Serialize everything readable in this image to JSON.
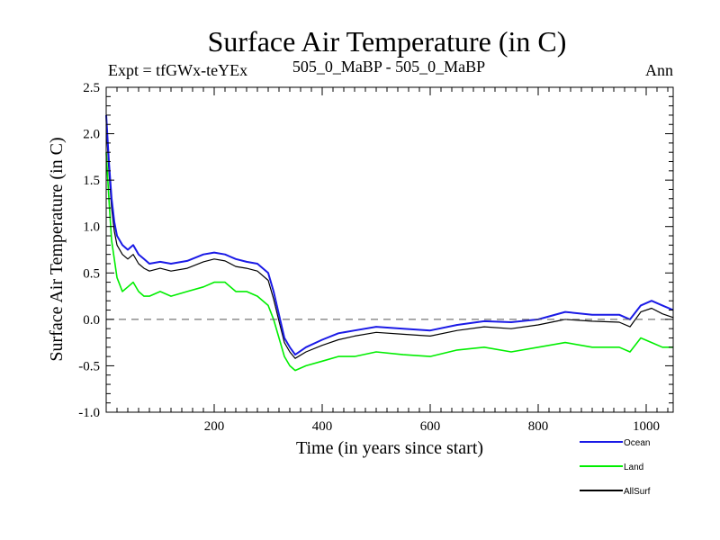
{
  "header": {
    "title": "Surface Air Temperature (in C)",
    "left_label": "Expt = tfGWx-teYEx",
    "center_label": "505_0_MaBP - 505_0_MaBP",
    "right_label": "Ann"
  },
  "colors": {
    "ocean": "#1a1ae6",
    "land": "#00ee00",
    "allsurf": "#000000",
    "zero_line": "#555555"
  },
  "chart_data": {
    "type": "line",
    "title": "Surface Air Temperature (in C)",
    "xlabel": "Time (in years since start)",
    "ylabel": "Surface Air Temperature (in C)",
    "xlim": [
      0,
      1050
    ],
    "ylim": [
      -1.0,
      2.5
    ],
    "x_ticks": [
      200,
      400,
      600,
      800,
      1000
    ],
    "x_tick_labels": [
      "200",
      "400",
      "600",
      "800",
      "1000"
    ],
    "y_ticks": [
      -1.0,
      -0.5,
      0.0,
      0.5,
      1.0,
      1.5,
      2.0,
      2.5
    ],
    "y_tick_labels": [
      "-1.0",
      "-0.5",
      "0.0",
      "0.5",
      "1.0",
      "1.5",
      "2.0",
      "2.5"
    ],
    "reference_line": {
      "y": 0.0,
      "style": "dashed"
    },
    "legend": {
      "position": "bottom-right, below plot",
      "entries": [
        "Ocean",
        "Land",
        "AllSurf"
      ]
    },
    "series": [
      {
        "name": "Ocean",
        "x": [
          0,
          5,
          10,
          15,
          20,
          30,
          40,
          50,
          60,
          70,
          80,
          100,
          120,
          150,
          180,
          200,
          220,
          240,
          260,
          280,
          300,
          310,
          320,
          330,
          340,
          350,
          370,
          400,
          430,
          460,
          500,
          550,
          600,
          650,
          700,
          750,
          800,
          850,
          900,
          950,
          970,
          990,
          1010,
          1030,
          1050
        ],
        "values": [
          2.2,
          1.7,
          1.3,
          1.05,
          0.9,
          0.8,
          0.75,
          0.8,
          0.7,
          0.65,
          0.6,
          0.62,
          0.6,
          0.63,
          0.7,
          0.72,
          0.7,
          0.65,
          0.62,
          0.6,
          0.5,
          0.3,
          0.05,
          -0.2,
          -0.3,
          -0.38,
          -0.3,
          -0.22,
          -0.15,
          -0.12,
          -0.08,
          -0.1,
          -0.12,
          -0.06,
          -0.02,
          -0.03,
          0.0,
          0.08,
          0.05,
          0.05,
          0.0,
          0.15,
          0.2,
          0.15,
          0.1
        ]
      },
      {
        "name": "Land",
        "x": [
          0,
          5,
          10,
          15,
          20,
          30,
          40,
          50,
          60,
          70,
          80,
          100,
          120,
          150,
          180,
          200,
          220,
          240,
          260,
          280,
          300,
          310,
          320,
          330,
          340,
          350,
          370,
          400,
          430,
          460,
          500,
          550,
          600,
          650,
          700,
          750,
          800,
          850,
          900,
          950,
          970,
          990,
          1010,
          1030,
          1050
        ],
        "values": [
          1.8,
          1.3,
          0.85,
          0.65,
          0.45,
          0.3,
          0.35,
          0.4,
          0.3,
          0.25,
          0.25,
          0.3,
          0.25,
          0.3,
          0.35,
          0.4,
          0.4,
          0.3,
          0.3,
          0.25,
          0.15,
          0.0,
          -0.2,
          -0.4,
          -0.5,
          -0.55,
          -0.5,
          -0.45,
          -0.4,
          -0.4,
          -0.35,
          -0.38,
          -0.4,
          -0.33,
          -0.3,
          -0.35,
          -0.3,
          -0.25,
          -0.3,
          -0.3,
          -0.35,
          -0.2,
          -0.25,
          -0.3,
          -0.3
        ]
      },
      {
        "name": "AllSurf",
        "x": [
          0,
          5,
          10,
          15,
          20,
          30,
          40,
          50,
          60,
          70,
          80,
          100,
          120,
          150,
          180,
          200,
          220,
          240,
          260,
          280,
          300,
          310,
          320,
          330,
          340,
          350,
          370,
          400,
          430,
          460,
          500,
          550,
          600,
          650,
          700,
          750,
          800,
          850,
          900,
          950,
          970,
          990,
          1010,
          1030,
          1050
        ],
        "values": [
          2.1,
          1.6,
          1.2,
          0.95,
          0.8,
          0.7,
          0.65,
          0.7,
          0.6,
          0.55,
          0.52,
          0.55,
          0.52,
          0.55,
          0.62,
          0.65,
          0.63,
          0.57,
          0.55,
          0.52,
          0.42,
          0.22,
          -0.02,
          -0.25,
          -0.35,
          -0.42,
          -0.35,
          -0.28,
          -0.22,
          -0.18,
          -0.14,
          -0.16,
          -0.18,
          -0.12,
          -0.08,
          -0.1,
          -0.06,
          0.0,
          -0.02,
          -0.03,
          -0.08,
          0.08,
          0.12,
          0.06,
          0.02
        ]
      }
    ]
  }
}
